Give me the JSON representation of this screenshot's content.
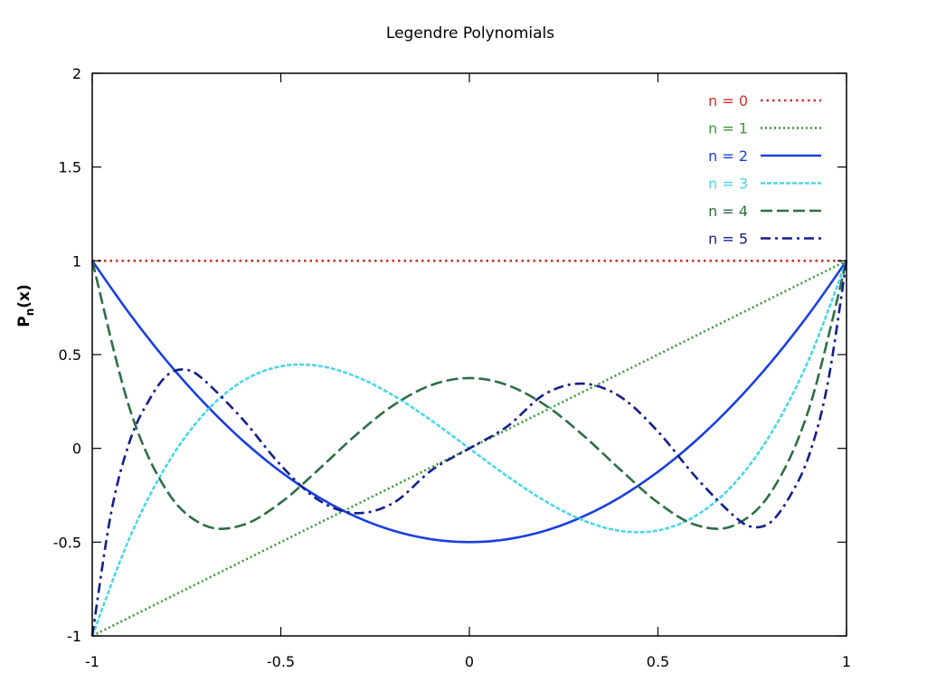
{
  "chart_data": {
    "type": "line",
    "title": "Legendre Polynomials",
    "xlabel": "",
    "ylabel_main": "P",
    "ylabel_sub": "n",
    "ylabel_tail": "(x)",
    "xlim": [
      -1,
      1
    ],
    "ylim": [
      -1,
      2
    ],
    "x_ticks": [
      {
        "value": -1,
        "label": "-1"
      },
      {
        "value": -0.5,
        "label": "-0.5"
      },
      {
        "value": 0,
        "label": "0"
      },
      {
        "value": 0.5,
        "label": "0.5"
      },
      {
        "value": 1,
        "label": "1"
      }
    ],
    "y_ticks": [
      {
        "value": -1,
        "label": "-1"
      },
      {
        "value": -0.5,
        "label": "-0.5"
      },
      {
        "value": 0,
        "label": "0"
      },
      {
        "value": 0.5,
        "label": "0.5"
      },
      {
        "value": 1,
        "label": "1"
      },
      {
        "value": 1.5,
        "label": "1.5"
      },
      {
        "value": 2,
        "label": "2"
      }
    ],
    "grid": false,
    "legend_position": "top-right",
    "series": [
      {
        "name": "n = 0",
        "color": "#d0312d",
        "dash": "dotted-fine",
        "x": [
          -1,
          -0.5,
          0,
          0.5,
          1
        ],
        "y": [
          1,
          1,
          1,
          1,
          1
        ]
      },
      {
        "name": "n = 1",
        "color": "#3a9a3a",
        "dash": "dotted",
        "x": [
          -1,
          -0.5,
          0,
          0.5,
          1
        ],
        "y": [
          -1,
          -0.5,
          0,
          0.5,
          1
        ]
      },
      {
        "name": "n = 2",
        "color": "#1a3fe0",
        "dash": "solid",
        "x": [
          -1,
          -0.9,
          -0.8,
          -0.7,
          -0.6,
          -0.5,
          -0.4,
          -0.3,
          -0.2,
          -0.1,
          0,
          0.1,
          0.2,
          0.3,
          0.4,
          0.5,
          0.6,
          0.7,
          0.8,
          0.9,
          1
        ],
        "y": [
          1,
          0.715,
          0.46,
          0.235,
          0.04,
          -0.125,
          -0.26,
          -0.365,
          -0.44,
          -0.485,
          -0.5,
          -0.485,
          -0.44,
          -0.365,
          -0.26,
          -0.125,
          0.04,
          0.235,
          0.46,
          0.715,
          1
        ]
      },
      {
        "name": "n = 3",
        "color": "#4dd6e6",
        "dash": "short-dash",
        "x": [
          -1,
          -0.9,
          -0.8,
          -0.7,
          -0.6,
          -0.5,
          -0.4,
          -0.3,
          -0.2,
          -0.1,
          0,
          0.1,
          0.2,
          0.3,
          0.4,
          0.5,
          0.6,
          0.7,
          0.8,
          0.9,
          1
        ],
        "y": [
          -1,
          -0.4725,
          -0.08,
          0.1925,
          0.36,
          0.4375,
          0.44,
          0.3825,
          0.28,
          0.1475,
          0,
          -0.1475,
          -0.28,
          -0.3825,
          -0.44,
          -0.4375,
          -0.36,
          -0.1925,
          0.08,
          0.4725,
          1
        ]
      },
      {
        "name": "n = 4",
        "color": "#2e6e46",
        "dash": "long-dash",
        "x": [
          -1,
          -0.9,
          -0.8,
          -0.7,
          -0.6,
          -0.5,
          -0.4,
          -0.3,
          -0.2,
          -0.1,
          0,
          0.1,
          0.2,
          0.3,
          0.4,
          0.5,
          0.6,
          0.7,
          0.8,
          0.9,
          1
        ],
        "y": [
          1,
          0.2079,
          -0.233,
          -0.4121,
          -0.408,
          -0.2891,
          -0.113,
          0.0729,
          0.232,
          0.3379,
          0.375,
          0.3379,
          0.232,
          0.0729,
          -0.113,
          -0.2891,
          -0.408,
          -0.4121,
          -0.233,
          0.2079,
          1
        ]
      },
      {
        "name": "n = 5",
        "color": "#141e8c",
        "dash": "dash-dot",
        "x": [
          -1,
          -0.95,
          -0.9,
          -0.85,
          -0.8,
          -0.75,
          -0.7,
          -0.6,
          -0.5,
          -0.4,
          -0.3,
          -0.2,
          -0.1,
          0,
          0.1,
          0.2,
          0.3,
          0.4,
          0.5,
          0.6,
          0.7,
          0.75,
          0.8,
          0.85,
          0.9,
          0.95,
          1
        ],
        "y": [
          -1,
          -0.3427,
          0.0411,
          0.2549,
          0.3918,
          0.4188,
          0.3577,
          0.1526,
          -0.0898,
          -0.2758,
          -0.3454,
          -0.2891,
          -0.1165,
          0,
          0.1165,
          0.2891,
          0.3454,
          0.2758,
          0.0898,
          -0.1526,
          -0.3577,
          -0.4188,
          -0.3918,
          -0.2549,
          -0.0411,
          0.3427,
          1
        ]
      }
    ]
  }
}
